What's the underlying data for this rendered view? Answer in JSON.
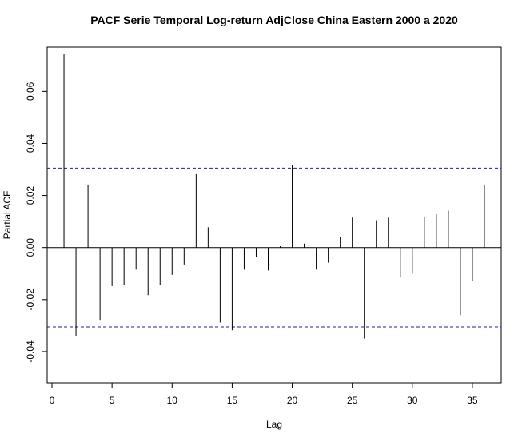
{
  "chart_data": {
    "type": "bar",
    "title": "PACF Serie Temporal Log-return AdjClose China Eastern 2000 a 2020",
    "xlabel": "Lag",
    "ylabel": "Partial ACF",
    "xlim": [
      -0.4,
      37.4
    ],
    "ylim": [
      -0.052,
      0.077
    ],
    "x_ticks": [
      0,
      5,
      10,
      15,
      20,
      25,
      30,
      35
    ],
    "x_tick_labels": [
      "0",
      "5",
      "10",
      "15",
      "20",
      "25",
      "30",
      "35"
    ],
    "y_ticks": [
      -0.04,
      -0.02,
      0.0,
      0.02,
      0.04,
      0.06
    ],
    "y_tick_labels": [
      "-0.04",
      "-0.02",
      "0.00",
      "0.02",
      "0.04",
      "0.06"
    ],
    "confidence_band": [
      -0.0305,
      0.0305
    ],
    "lags": [
      1,
      2,
      3,
      4,
      5,
      6,
      7,
      8,
      9,
      10,
      11,
      12,
      13,
      14,
      15,
      16,
      17,
      18,
      19,
      20,
      21,
      22,
      23,
      24,
      25,
      26,
      27,
      28,
      29,
      30,
      31,
      32,
      33,
      34,
      35,
      36
    ],
    "values": [
      0.0745,
      -0.034,
      0.0242,
      -0.0278,
      -0.0148,
      -0.0145,
      -0.0085,
      -0.0183,
      -0.0145,
      -0.0105,
      -0.0065,
      0.0282,
      0.0078,
      -0.0288,
      -0.0318,
      -0.0085,
      -0.0035,
      -0.0088,
      0.0005,
      0.0318,
      0.0015,
      -0.0085,
      -0.0058,
      0.004,
      0.0115,
      -0.035,
      0.0105,
      0.0115,
      -0.0115,
      -0.01,
      0.0118,
      0.0128,
      0.0142,
      -0.026,
      -0.0128,
      0.0242
    ],
    "grid": false,
    "colors": {
      "bars": "#000000",
      "band": "#1f1fa0",
      "zero_line": "#000000"
    }
  }
}
